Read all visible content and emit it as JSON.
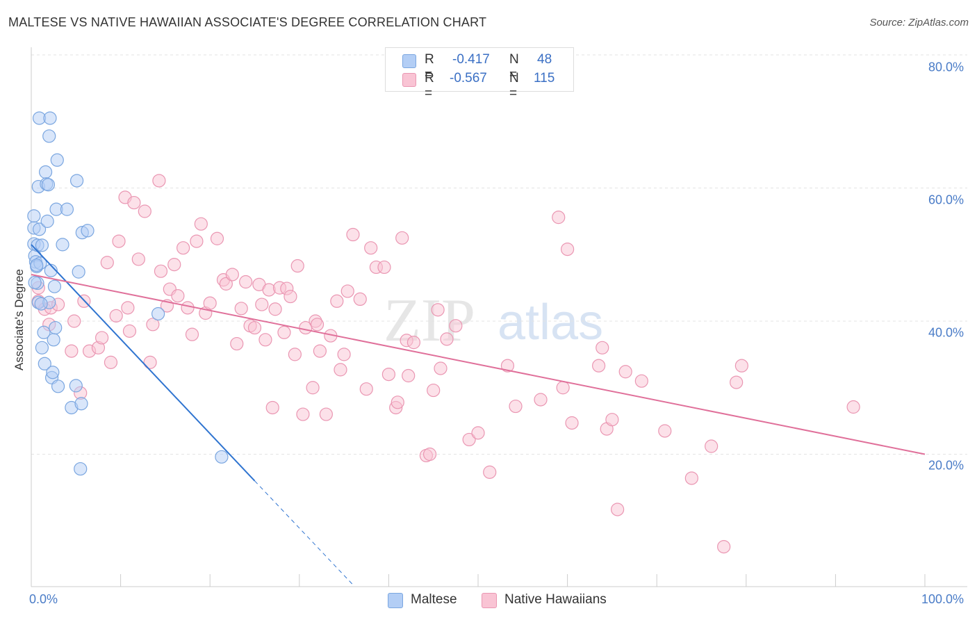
{
  "title": "MALTESE VS NATIVE HAWAIIAN ASSOCIATE'S DEGREE CORRELATION CHART",
  "source": "Source: ZipAtlas.com",
  "watermark": {
    "zip": "ZIP",
    "atlas": "atlas"
  },
  "colors": {
    "maltese_fill": "#b3cef5",
    "maltese_stroke": "#7aa6e0",
    "maltese_line": "#2f74d0",
    "hawaiian_fill": "#f9c4d4",
    "hawaiian_stroke": "#ea96b2",
    "hawaiian_line": "#e0709a",
    "tick_text": "#4a7cc7",
    "grid": "#e3e3e3"
  },
  "stats": {
    "maltese": {
      "r_label": "R =",
      "r_value": "-0.417",
      "n_label": "N =",
      "n_value": "48"
    },
    "hawaiian": {
      "r_label": "R =",
      "r_value": "-0.567",
      "n_label": "N =",
      "n_value": "115"
    }
  },
  "legend": {
    "maltese": "Maltese",
    "hawaiian": "Native Hawaiians"
  },
  "chart_data": {
    "type": "scatter",
    "title": "MALTESE VS NATIVE HAWAIIAN ASSOCIATE'S DEGREE CORRELATION CHART",
    "xlabel": "",
    "ylabel": "Associate's Degree",
    "xlim": [
      0,
      100
    ],
    "ylim": [
      0,
      80
    ],
    "x_tick_labels": [
      "0.0%",
      "100.0%"
    ],
    "y_ticks": [
      20,
      40,
      60,
      80
    ],
    "y_tick_labels": [
      "20.0%",
      "40.0%",
      "60.0%",
      "80.0%"
    ],
    "grid": true,
    "legend_position": "bottom",
    "series": [
      {
        "name": "Maltese",
        "r": -0.417,
        "n": 48,
        "trend": {
          "x0": 0,
          "y0": 51.5,
          "x1": 25,
          "y1": 16.0,
          "dashed_to_x": 36
        },
        "points": [
          [
            0.3,
            55.8
          ],
          [
            0.3,
            54.0
          ],
          [
            0.3,
            51.6
          ],
          [
            0.4,
            49.8
          ],
          [
            0.5,
            48.9
          ],
          [
            0.6,
            48.2
          ],
          [
            0.7,
            51.4
          ],
          [
            0.7,
            45.7
          ],
          [
            0.8,
            42.8
          ],
          [
            0.9,
            53.8
          ],
          [
            0.8,
            60.2
          ],
          [
            0.9,
            70.5
          ],
          [
            1.0,
            48.7
          ],
          [
            1.2,
            51.4
          ],
          [
            1.2,
            36.0
          ],
          [
            1.4,
            38.3
          ],
          [
            1.5,
            33.6
          ],
          [
            1.6,
            62.4
          ],
          [
            1.7,
            60.6
          ],
          [
            1.8,
            55.0
          ],
          [
            1.9,
            60.5
          ],
          [
            2.0,
            42.8
          ],
          [
            2.0,
            67.8
          ],
          [
            2.1,
            70.5
          ],
          [
            2.2,
            47.6
          ],
          [
            2.3,
            31.5
          ],
          [
            2.4,
            32.3
          ],
          [
            2.5,
            37.2
          ],
          [
            2.6,
            45.2
          ],
          [
            2.7,
            39.0
          ],
          [
            2.8,
            56.8
          ],
          [
            2.9,
            64.2
          ],
          [
            3.0,
            30.2
          ],
          [
            3.5,
            51.5
          ],
          [
            4.0,
            56.8
          ],
          [
            4.5,
            27.0
          ],
          [
            5.0,
            30.3
          ],
          [
            5.1,
            61.1
          ],
          [
            5.3,
            47.4
          ],
          [
            5.5,
            17.8
          ],
          [
            5.6,
            27.6
          ],
          [
            5.7,
            53.3
          ],
          [
            6.3,
            53.6
          ],
          [
            14.2,
            41.1
          ],
          [
            21.3,
            19.6
          ],
          [
            0.6,
            48.4
          ],
          [
            1.1,
            42.6
          ],
          [
            0.4,
            45.8
          ]
        ]
      },
      {
        "name": "Native Hawaiians",
        "r": -0.567,
        "n": 115,
        "trend": {
          "x0": 0,
          "y0": 47.0,
          "x1": 100,
          "y1": 20.0
        },
        "points": [
          [
            0.8,
            45.0
          ],
          [
            0.8,
            43.0
          ],
          [
            1.5,
            41.8
          ],
          [
            2.0,
            39.5
          ],
          [
            2.2,
            42.0
          ],
          [
            3.0,
            42.5
          ],
          [
            4.5,
            35.5
          ],
          [
            4.8,
            40.0
          ],
          [
            5.5,
            29.2
          ],
          [
            5.9,
            43.0
          ],
          [
            6.5,
            35.5
          ],
          [
            7.5,
            36.0
          ],
          [
            7.9,
            37.5
          ],
          [
            8.5,
            48.8
          ],
          [
            8.9,
            33.8
          ],
          [
            9.5,
            40.8
          ],
          [
            9.8,
            52.0
          ],
          [
            10.5,
            58.6
          ],
          [
            10.8,
            42.0
          ],
          [
            11.0,
            38.5
          ],
          [
            11.5,
            57.8
          ],
          [
            12.0,
            49.3
          ],
          [
            12.7,
            56.5
          ],
          [
            13.3,
            33.8
          ],
          [
            13.6,
            39.5
          ],
          [
            14.3,
            61.1
          ],
          [
            14.5,
            47.5
          ],
          [
            15.2,
            42.3
          ],
          [
            15.5,
            44.8
          ],
          [
            16.0,
            48.5
          ],
          [
            16.4,
            43.8
          ],
          [
            17.0,
            51.0
          ],
          [
            17.5,
            42.0
          ],
          [
            18.0,
            38.0
          ],
          [
            18.5,
            52.0
          ],
          [
            19.0,
            54.6
          ],
          [
            19.5,
            41.2
          ],
          [
            20.0,
            42.7
          ],
          [
            20.8,
            52.4
          ],
          [
            21.5,
            46.2
          ],
          [
            21.8,
            45.6
          ],
          [
            22.5,
            47.0
          ],
          [
            23.0,
            36.6
          ],
          [
            23.5,
            41.9
          ],
          [
            24.0,
            45.9
          ],
          [
            24.5,
            39.3
          ],
          [
            25.0,
            39.0
          ],
          [
            25.5,
            45.5
          ],
          [
            25.8,
            42.5
          ],
          [
            26.2,
            37.2
          ],
          [
            26.6,
            44.7
          ],
          [
            27.3,
            41.8
          ],
          [
            27.8,
            45.0
          ],
          [
            28.3,
            38.3
          ],
          [
            28.6,
            44.9
          ],
          [
            29.0,
            43.7
          ],
          [
            29.5,
            35.0
          ],
          [
            29.8,
            48.3
          ],
          [
            30.4,
            26.0
          ],
          [
            30.7,
            39.0
          ],
          [
            31.5,
            30.0
          ],
          [
            31.8,
            40.0
          ],
          [
            32.0,
            39.5
          ],
          [
            32.3,
            35.5
          ],
          [
            33.5,
            37.8
          ],
          [
            34.2,
            43.0
          ],
          [
            34.6,
            32.7
          ],
          [
            35.0,
            35.0
          ],
          [
            35.4,
            44.5
          ],
          [
            36.0,
            53.0
          ],
          [
            36.8,
            43.3
          ],
          [
            37.5,
            29.8
          ],
          [
            38.0,
            51.0
          ],
          [
            38.6,
            48.1
          ],
          [
            39.5,
            48.1
          ],
          [
            40.0,
            32.0
          ],
          [
            40.8,
            27.0
          ],
          [
            41.0,
            27.8
          ],
          [
            41.5,
            52.5
          ],
          [
            42.0,
            37.1
          ],
          [
            42.2,
            31.8
          ],
          [
            42.8,
            36.8
          ],
          [
            44.2,
            19.8
          ],
          [
            44.6,
            20.0
          ],
          [
            45.0,
            29.6
          ],
          [
            45.5,
            41.7
          ],
          [
            45.8,
            32.9
          ],
          [
            46.5,
            37.3
          ],
          [
            47.5,
            39.3
          ],
          [
            49.0,
            22.2
          ],
          [
            50.0,
            23.2
          ],
          [
            51.3,
            17.3
          ],
          [
            53.3,
            33.3
          ],
          [
            54.2,
            27.2
          ],
          [
            57.0,
            28.2
          ],
          [
            59.0,
            55.6
          ],
          [
            59.5,
            30.0
          ],
          [
            60.0,
            50.8
          ],
          [
            60.5,
            24.7
          ],
          [
            63.5,
            33.3
          ],
          [
            63.9,
            36.0
          ],
          [
            64.4,
            23.8
          ],
          [
            65.0,
            25.2
          ],
          [
            65.6,
            11.7
          ],
          [
            66.5,
            32.4
          ],
          [
            68.3,
            31.0
          ],
          [
            70.9,
            23.5
          ],
          [
            73.9,
            16.4
          ],
          [
            76.1,
            21.2
          ],
          [
            77.5,
            6.1
          ],
          [
            78.9,
            30.8
          ],
          [
            79.5,
            33.3
          ],
          [
            92.0,
            27.1
          ],
          [
            33.0,
            26.0
          ],
          [
            27.0,
            27.0
          ]
        ]
      }
    ]
  }
}
